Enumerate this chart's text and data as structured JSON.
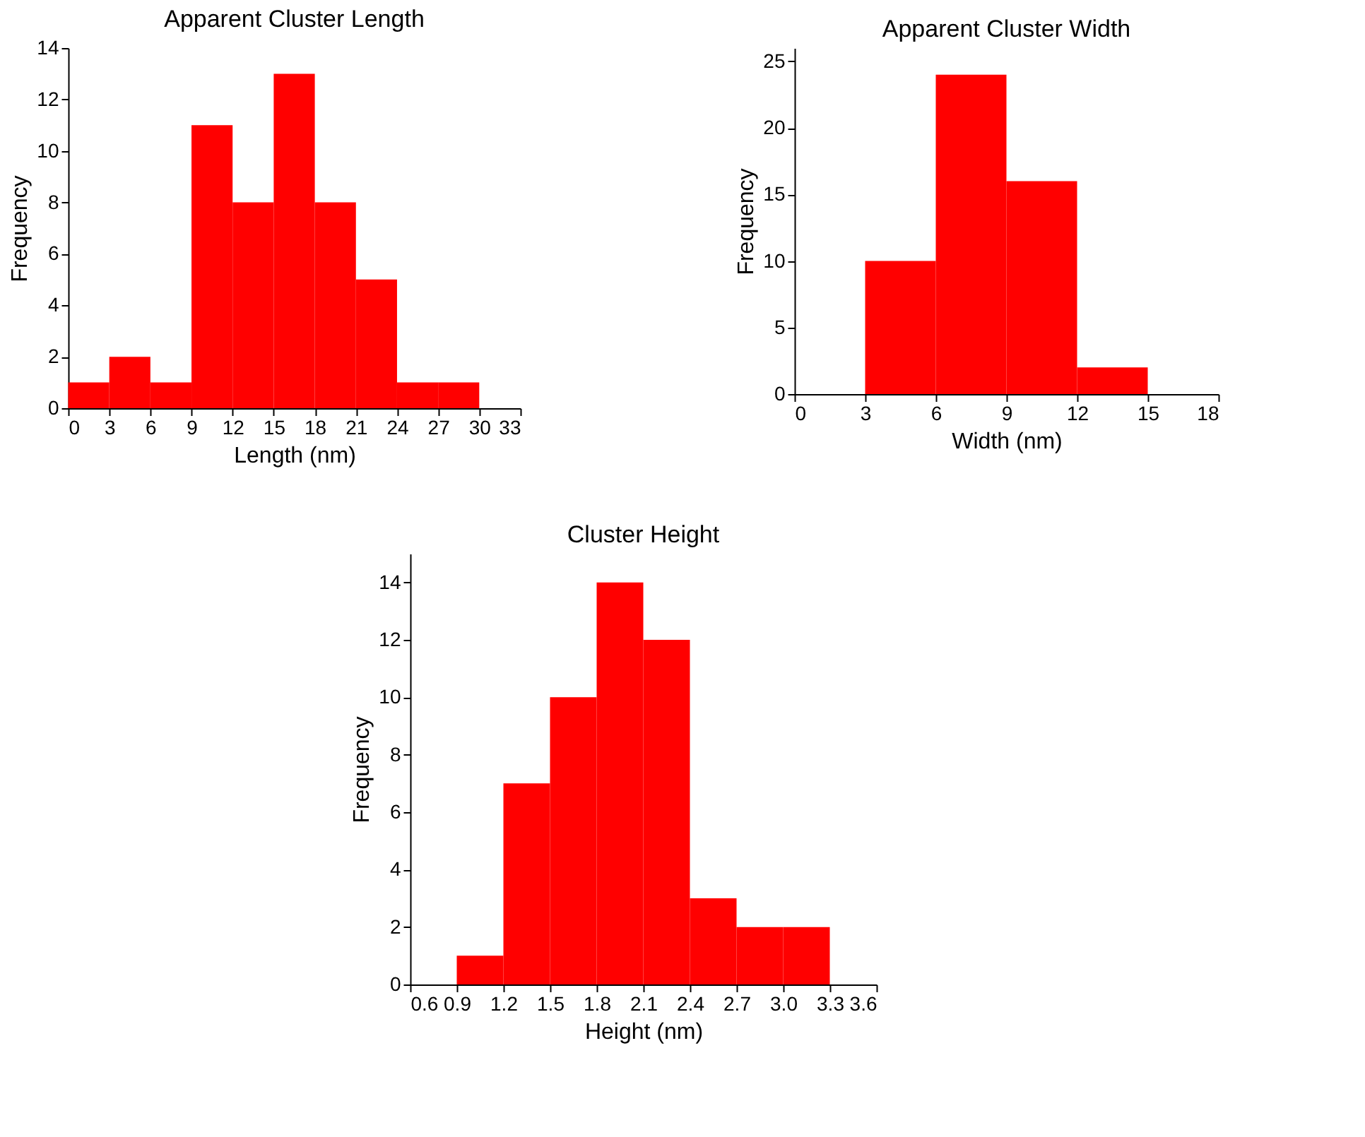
{
  "chart_data": [
    {
      "type": "histogram",
      "title": "Apparent Cluster Length",
      "xlabel": "Length (nm)",
      "ylabel": "Frequency",
      "color": "#ff0000",
      "bins": [
        0,
        3,
        6,
        9,
        12,
        15,
        18,
        21,
        24,
        27,
        30
      ],
      "values": [
        1,
        2,
        1,
        11,
        8,
        13,
        8,
        5,
        1,
        1
      ],
      "xlim": [
        0,
        33
      ],
      "xticks": [
        0,
        3,
        6,
        9,
        12,
        15,
        18,
        21,
        24,
        27,
        30,
        33
      ],
      "ylim": [
        0,
        14
      ],
      "yticks": [
        0,
        2,
        4,
        6,
        8,
        10,
        12,
        14
      ]
    },
    {
      "type": "histogram",
      "title": "Apparent Cluster Width",
      "xlabel": "Width (nm)",
      "ylabel": "Frequency",
      "color": "#ff0000",
      "bins": [
        3,
        6,
        9,
        12,
        15
      ],
      "values": [
        10,
        24,
        16,
        2
      ],
      "xlim": [
        0,
        18
      ],
      "xticks": [
        0,
        3,
        6,
        9,
        12,
        15,
        18
      ],
      "ylim": [
        0,
        26
      ],
      "yticks": [
        0,
        5,
        10,
        15,
        20,
        25
      ]
    },
    {
      "type": "histogram",
      "title": "Cluster Height",
      "xlabel": "Height (nm)",
      "ylabel": "Frequency",
      "color": "#ff0000",
      "bins": [
        0.9,
        1.2,
        1.5,
        1.8,
        2.1,
        2.4,
        2.7,
        3.0,
        3.3
      ],
      "values": [
        1,
        7,
        10,
        14,
        12,
        3,
        2,
        2
      ],
      "xlim": [
        0.6,
        3.6
      ],
      "xticks": [
        0.6,
        0.9,
        1.2,
        1.5,
        1.8,
        2.1,
        2.4,
        2.7,
        {
          "value": 3.0,
          "label": "3.0"
        },
        3.3,
        3.6
      ],
      "ylim": [
        0,
        15
      ],
      "yticks": [
        0,
        2,
        4,
        6,
        8,
        10,
        12,
        14
      ]
    }
  ]
}
